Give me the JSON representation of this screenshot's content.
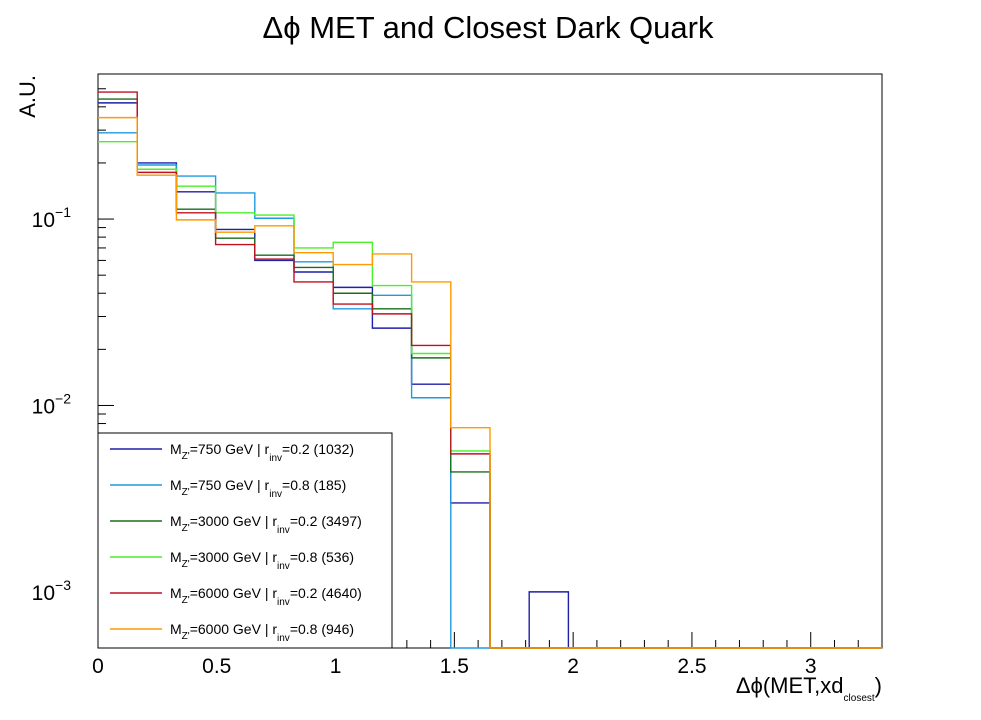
{
  "chart_data": {
    "type": "line",
    "style": "step-histogram",
    "title_parts": [
      "Δϕ",
      " MET and Closest Dark Quark"
    ],
    "xlabel_parts": [
      "Δϕ(MET,xd",
      "closest",
      ")"
    ],
    "ylabel": "A.U.",
    "xlim": [
      0,
      3.3
    ],
    "ylim": [
      0.0005,
      0.6
    ],
    "y_scale": "log",
    "x_ticks": [
      {
        "value": 0,
        "label": "0"
      },
      {
        "value": 0.5,
        "label": "0.5"
      },
      {
        "value": 1,
        "label": "1"
      },
      {
        "value": 1.5,
        "label": "1.5"
      },
      {
        "value": 2,
        "label": "2"
      },
      {
        "value": 2.5,
        "label": "2.5"
      },
      {
        "value": 3,
        "label": "3"
      }
    ],
    "y_ticks": [
      {
        "value": 0.1,
        "base": "10",
        "exp": "−1"
      },
      {
        "value": 0.01,
        "base": "10",
        "exp": "−2"
      },
      {
        "value": 0.001,
        "base": "10",
        "exp": "−3"
      }
    ],
    "bin_edges": [
      0,
      0.165,
      0.33,
      0.495,
      0.66,
      0.825,
      0.99,
      1.155,
      1.32,
      1.485,
      1.65,
      1.815,
      1.98,
      2.145,
      2.31,
      2.475,
      2.64,
      2.805,
      2.97,
      3.135,
      3.3
    ],
    "legend_position": "bottom-left",
    "series": [
      {
        "name_parts": [
          "M",
          "Z'",
          "=750 GeV | r",
          "inv",
          "=0.2 (1032)"
        ],
        "color": "#1f1fa8",
        "values": [
          0.42,
          0.2,
          0.14,
          0.088,
          0.06,
          0.052,
          0.043,
          0.026,
          0.013,
          0.003,
          0,
          0.001,
          0,
          0,
          0,
          0,
          0,
          0,
          0,
          0
        ]
      },
      {
        "name_parts": [
          "M",
          "Z'",
          "=750 GeV | r",
          "inv",
          "=0.8 (185)"
        ],
        "color": "#1e9be0",
        "values": [
          0.29,
          0.195,
          0.17,
          0.138,
          0.101,
          0.059,
          0.033,
          0.039,
          0.011,
          0,
          0,
          0,
          0,
          0,
          0,
          0,
          0,
          0,
          0,
          0
        ]
      },
      {
        "name_parts": [
          "M",
          "Z'",
          "=3000 GeV | r",
          "inv",
          "=0.2 (3497)"
        ],
        "color": "#1a6e1a",
        "values": [
          0.44,
          0.185,
          0.113,
          0.079,
          0.064,
          0.055,
          0.04,
          0.033,
          0.018,
          0.0044,
          0,
          0,
          0,
          0,
          0,
          0,
          0,
          0,
          0,
          0
        ]
      },
      {
        "name_parts": [
          "M",
          "Z'",
          "=3000 GeV | r",
          "inv",
          "=0.8 (536)"
        ],
        "color": "#4bef2c",
        "values": [
          0.26,
          0.185,
          0.15,
          0.108,
          0.105,
          0.07,
          0.075,
          0.044,
          0.019,
          0.0057,
          0,
          0,
          0,
          0,
          0,
          0,
          0,
          0,
          0,
          0
        ]
      },
      {
        "name_parts": [
          "M",
          "Z'",
          "=6000 GeV | r",
          "inv",
          "=0.2 (4640)"
        ],
        "color": "#c01020",
        "values": [
          0.48,
          0.178,
          0.108,
          0.073,
          0.061,
          0.046,
          0.035,
          0.031,
          0.021,
          0.0055,
          0,
          0,
          0,
          0,
          0,
          0,
          0,
          0,
          0,
          0
        ]
      },
      {
        "name_parts": [
          "M",
          "Z'",
          "=6000 GeV | r",
          "inv",
          "=0.8 (946)"
        ],
        "color": "#ff9a00",
        "values": [
          0.35,
          0.172,
          0.099,
          0.085,
          0.092,
          0.066,
          0.057,
          0.065,
          0.046,
          0.0076,
          0,
          0,
          0,
          0,
          0,
          0,
          0,
          0,
          0,
          0
        ]
      }
    ]
  }
}
